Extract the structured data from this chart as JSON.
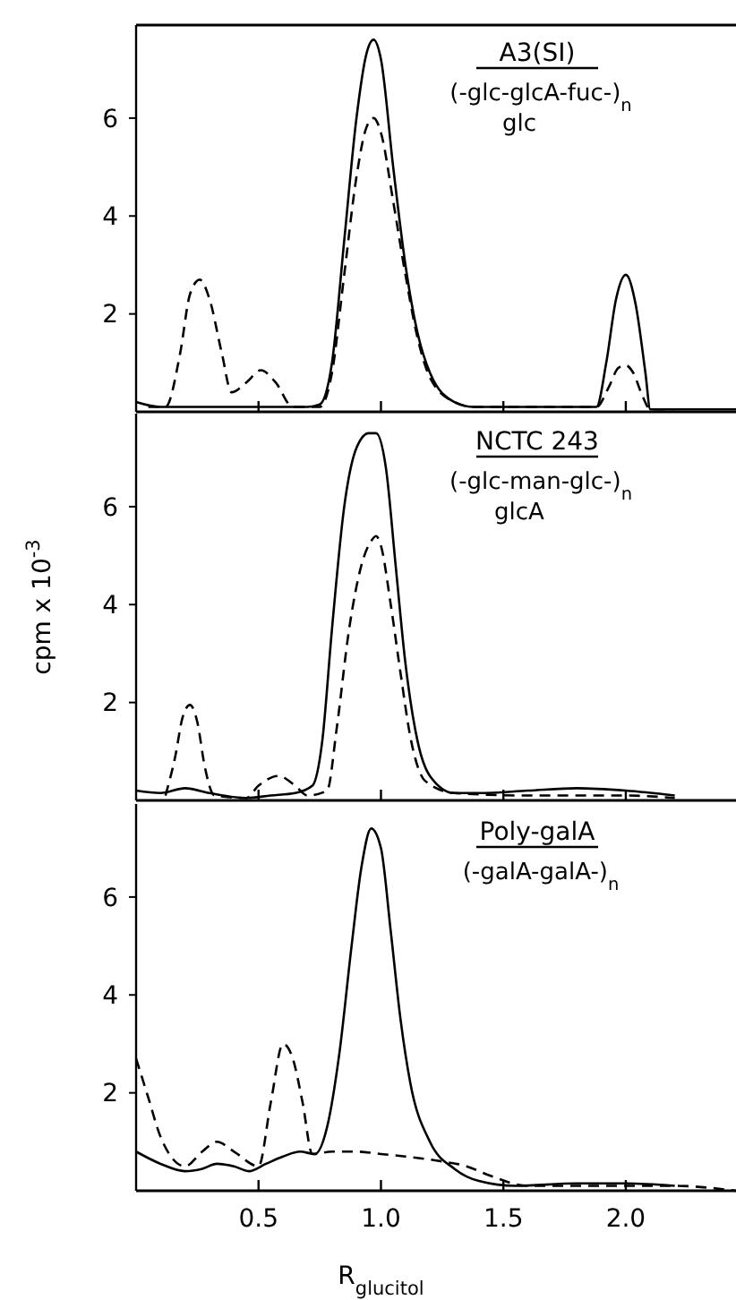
{
  "chart_data": [
    {
      "type": "line",
      "title": "A3(SI)",
      "annotations": [
        "(-glc-glcA-fuc-)$_{n}$",
        "glc"
      ],
      "xlim": [
        0,
        2.45
      ],
      "xticks": [
        {
          "value": 0.5,
          "label": null
        },
        {
          "value": 1,
          "label": null
        },
        {
          "value": 1.5,
          "label": null
        },
        {
          "value": 2,
          "label": null
        }
      ],
      "ylim": [
        0,
        7.9
      ],
      "yticks": [
        2,
        4,
        6
      ],
      "tick_labels": "y",
      "series": [
        {
          "color": "#000000",
          "line_style": "solid",
          "x": [
            0,
            0.1,
            0.3,
            0.5,
            0.7,
            0.75,
            0.8,
            0.85,
            0.9,
            0.94,
            0.97,
            1.0,
            1.05,
            1.1,
            1.15,
            1.2,
            1.3,
            1.38,
            1.6,
            1.88,
            1.92,
            1.96,
            2.0,
            2.04,
            2.08,
            2.1,
            2.2,
            2.45
          ],
          "values": [
            0.2,
            0.1,
            0.1,
            0.1,
            0.1,
            0.15,
            1.0,
            3.5,
            6.0,
            7.3,
            7.6,
            7.2,
            5.0,
            3.0,
            1.6,
            0.8,
            0.2,
            0.1,
            0.1,
            0.1,
            1.0,
            2.3,
            2.8,
            2.2,
            0.8,
            0.05,
            0.05,
            0.05
          ]
        },
        {
          "color": "#000000",
          "line_style": "dashed",
          "x": [
            0.05,
            0.12,
            0.18,
            0.22,
            0.26,
            0.3,
            0.35,
            0.39,
            0.45,
            0.51,
            0.57,
            0.64,
            0.75,
            0.8,
            0.85,
            0.9,
            0.94,
            0.97,
            1.0,
            1.05,
            1.1,
            1.15,
            1.2,
            1.3,
            1.38,
            1.6,
            1.88,
            1.93,
            1.97,
            2.0,
            2.03,
            2.07,
            2.1,
            2.2
          ],
          "values": [
            0.1,
            0.1,
            1.2,
            2.4,
            2.7,
            2.3,
            1.2,
            0.4,
            0.6,
            0.85,
            0.6,
            0.1,
            0.1,
            0.8,
            2.8,
            4.8,
            5.8,
            6.0,
            5.7,
            4.3,
            2.8,
            1.5,
            0.7,
            0.2,
            0.1,
            0.1,
            0.1,
            0.5,
            0.9,
            0.95,
            0.8,
            0.3,
            0.05,
            0.05
          ]
        }
      ]
    },
    {
      "type": "line",
      "title": "NCTC 243",
      "ylabel": "cpm x 10$^{-3}$",
      "annotations": [
        "(-glc-man-glc-)$_{n}$",
        "glcA"
      ],
      "xlim": [
        0,
        2.45
      ],
      "xticks": [
        {
          "value": 0.5,
          "label": null
        },
        {
          "value": 1,
          "label": null
        },
        {
          "value": 1.5,
          "label": null
        },
        {
          "value": 2,
          "label": null
        }
      ],
      "ylim": [
        0,
        7.9
      ],
      "yticks": [
        2,
        4,
        6
      ],
      "tick_labels": "y",
      "series": [
        {
          "color": "#000000",
          "line_style": "solid",
          "x": [
            0,
            0.1,
            0.2,
            0.3,
            0.45,
            0.55,
            0.65,
            0.72,
            0.76,
            0.8,
            0.85,
            0.9,
            0.95,
            0.98,
            1.02,
            1.06,
            1.1,
            1.15,
            1.2,
            1.3,
            1.4,
            1.6,
            1.8,
            2.0,
            2.2
          ],
          "values": [
            0.2,
            0.15,
            0.25,
            0.15,
            0.05,
            0.1,
            0.15,
            0.3,
            1.2,
            3.5,
            6.0,
            7.2,
            7.5,
            7.5,
            6.8,
            4.8,
            2.8,
            1.2,
            0.5,
            0.15,
            0.15,
            0.2,
            0.25,
            0.2,
            0.1
          ]
        },
        {
          "color": "#000000",
          "line_style": "dashed",
          "x": [
            0.12,
            0.16,
            0.19,
            0.22,
            0.25,
            0.28,
            0.32,
            0.45,
            0.5,
            0.58,
            0.65,
            0.7,
            0.78,
            0.82,
            0.87,
            0.92,
            0.96,
            0.98,
            1.0,
            1.04,
            1.08,
            1.12,
            1.18,
            1.3,
            1.6,
            2.0,
            2.2
          ],
          "values": [
            0.1,
            0.9,
            1.7,
            1.95,
            1.6,
            0.7,
            0.1,
            0.05,
            0.3,
            0.5,
            0.3,
            0.1,
            0.2,
            1.5,
            3.5,
            4.8,
            5.3,
            5.4,
            5.2,
            4.0,
            2.6,
            1.3,
            0.4,
            0.15,
            0.1,
            0.1,
            0.05
          ]
        }
      ]
    },
    {
      "type": "line",
      "title": "Poly-galA",
      "xlabel": "R$_{glucitol}$",
      "annotations": [
        "(-galA-galA-)$_{n}$"
      ],
      "xlim": [
        0,
        2.45
      ],
      "xticks": [
        0.5,
        {
          "value": 1,
          "label": "1.0"
        },
        1.5,
        {
          "value": 2,
          "label": "2.0"
        }
      ],
      "ylim": [
        0,
        7.9
      ],
      "yticks": [
        2,
        4,
        6
      ],
      "series": [
        {
          "color": "#000000",
          "line_style": "solid",
          "x": [
            0,
            0.1,
            0.2,
            0.27,
            0.33,
            0.4,
            0.46,
            0.53,
            0.6,
            0.67,
            0.73,
            0.78,
            0.83,
            0.88,
            0.92,
            0.96,
            1.0,
            1.04,
            1.08,
            1.12,
            1.2,
            1.3,
            1.4,
            1.55,
            1.8,
            2.0,
            2.2
          ],
          "values": [
            0.8,
            0.55,
            0.4,
            0.45,
            0.55,
            0.5,
            0.4,
            0.55,
            0.7,
            0.8,
            0.75,
            1.3,
            2.8,
            5.0,
            6.6,
            7.4,
            7.0,
            5.3,
            3.5,
            2.2,
            1.0,
            0.45,
            0.2,
            0.1,
            0.15,
            0.15,
            0.1
          ]
        },
        {
          "color": "#000000",
          "line_style": "dashed",
          "x": [
            0,
            0.05,
            0.1,
            0.2,
            0.27,
            0.33,
            0.4,
            0.5,
            0.55,
            0.6,
            0.64,
            0.68,
            0.72,
            0.8,
            0.9,
            1.0,
            1.1,
            1.25,
            1.35,
            1.45,
            1.6,
            1.8,
            2.0,
            2.2,
            2.45
          ],
          "values": [
            2.7,
            1.9,
            1.1,
            0.5,
            0.8,
            1.0,
            0.8,
            0.5,
            1.8,
            3.0,
            2.7,
            1.8,
            0.75,
            0.8,
            0.8,
            0.75,
            0.7,
            0.6,
            0.5,
            0.3,
            0.1,
            0.1,
            0.1,
            0.1,
            0
          ]
        }
      ]
    }
  ]
}
